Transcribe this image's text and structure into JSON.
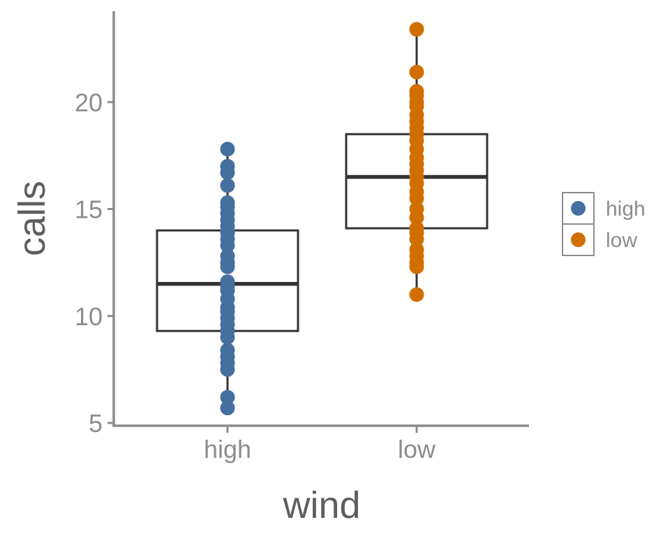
{
  "chart_data": {
    "type": "boxplot",
    "xlabel": "wind",
    "ylabel": "calls",
    "categories": [
      "high",
      "low"
    ],
    "ylim": [
      4.8,
      24.3
    ],
    "yticks": [
      5,
      10,
      15,
      20
    ],
    "grid": false,
    "legend_position": "right",
    "colors": {
      "high": "#446f9e",
      "low": "#d16e00"
    },
    "series": [
      {
        "name": "high",
        "box": {
          "min": 5.7,
          "q1": 9.3,
          "median": 11.5,
          "q3": 14.0,
          "max": 17.8
        },
        "points": [
          5.7,
          6.2,
          7.5,
          7.8,
          8.1,
          8.4,
          9.0,
          9.3,
          9.6,
          9.9,
          10.2,
          10.4,
          10.8,
          11.2,
          11.4,
          11.6,
          12.3,
          12.5,
          12.8,
          13.3,
          13.6,
          13.9,
          14.2,
          14.5,
          14.8,
          15.1,
          15.3,
          16.1,
          16.7,
          17.0,
          17.8
        ]
      },
      {
        "name": "low",
        "box": {
          "min": 11.0,
          "q1": 14.1,
          "median": 16.5,
          "q3": 18.5,
          "max": 23.4
        },
        "points": [
          11.0,
          12.3,
          12.5,
          12.8,
          13.1,
          13.6,
          13.9,
          14.1,
          14.6,
          15.0,
          15.5,
          15.8,
          16.2,
          16.5,
          16.8,
          17.1,
          17.4,
          17.8,
          18.2,
          18.5,
          18.8,
          19.1,
          19.4,
          19.8,
          20.0,
          20.3,
          20.5,
          21.4,
          23.4
        ]
      }
    ],
    "legend": [
      {
        "label": "high",
        "color": "#446f9e"
      },
      {
        "label": "low",
        "color": "#d16e00"
      }
    ]
  }
}
